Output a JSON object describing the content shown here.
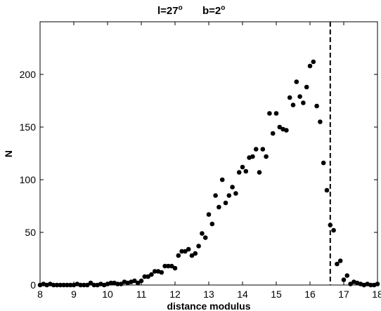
{
  "chart_data": {
    "type": "scatter",
    "title": {
      "l_text": "l=27",
      "l_sup": "o",
      "b_text": "b=2",
      "b_sup": "o"
    },
    "xlabel": "distance modulus",
    "ylabel": "N",
    "xlim": [
      8,
      18
    ],
    "ylim": [
      0,
      250
    ],
    "xticks": [
      8,
      9,
      10,
      11,
      12,
      13,
      14,
      15,
      16,
      17,
      18
    ],
    "yticks": [
      0,
      50,
      100,
      150,
      200
    ],
    "grid": false,
    "reference_line": {
      "x": 16.6,
      "style": "dashed"
    },
    "points": {
      "x": [
        8.0,
        8.1,
        8.2,
        8.3,
        8.4,
        8.5,
        8.6,
        8.7,
        8.8,
        8.9,
        9.0,
        9.1,
        9.2,
        9.3,
        9.4,
        9.5,
        9.6,
        9.7,
        9.8,
        9.9,
        10.0,
        10.1,
        10.2,
        10.3,
        10.4,
        10.5,
        10.6,
        10.7,
        10.8,
        10.9,
        11.0,
        11.1,
        11.2,
        11.3,
        11.4,
        11.5,
        11.6,
        11.7,
        11.8,
        11.9,
        12.0,
        12.1,
        12.2,
        12.3,
        12.4,
        12.5,
        12.6,
        12.7,
        12.8,
        12.9,
        13.0,
        13.1,
        13.2,
        13.3,
        13.4,
        13.5,
        13.6,
        13.7,
        13.8,
        13.9,
        14.0,
        14.1,
        14.2,
        14.3,
        14.4,
        14.5,
        14.6,
        14.7,
        14.8,
        14.9,
        15.0,
        15.1,
        15.2,
        15.3,
        15.4,
        15.5,
        15.6,
        15.7,
        15.8,
        15.9,
        16.0,
        16.1,
        16.2,
        16.3,
        16.4,
        16.5,
        16.6,
        16.7,
        16.8,
        16.9,
        17.0,
        17.1,
        17.2,
        17.3,
        17.4,
        17.5,
        17.6,
        17.7,
        17.8,
        17.9,
        18.0
      ],
      "y": [
        0,
        1,
        0,
        1,
        0,
        0,
        0,
        0,
        0,
        0,
        0,
        1,
        0,
        0,
        0,
        2,
        0,
        0,
        1,
        0,
        1,
        2,
        2,
        1,
        1,
        3,
        2,
        3,
        4,
        2,
        4,
        8,
        8,
        10,
        13,
        13,
        12,
        18,
        18,
        18,
        16,
        28,
        32,
        32,
        34,
        28,
        30,
        37,
        49,
        45,
        67,
        58,
        85,
        74,
        100,
        78,
        85,
        93,
        87,
        107,
        112,
        108,
        121,
        122,
        129,
        107,
        129,
        122,
        163,
        144,
        163,
        150,
        148,
        147,
        178,
        171,
        193,
        179,
        173,
        188,
        208,
        212,
        170,
        155,
        116,
        90,
        57,
        52,
        20,
        23,
        5,
        9,
        1,
        3,
        2,
        1,
        0,
        1,
        0,
        0,
        1
      ]
    }
  }
}
